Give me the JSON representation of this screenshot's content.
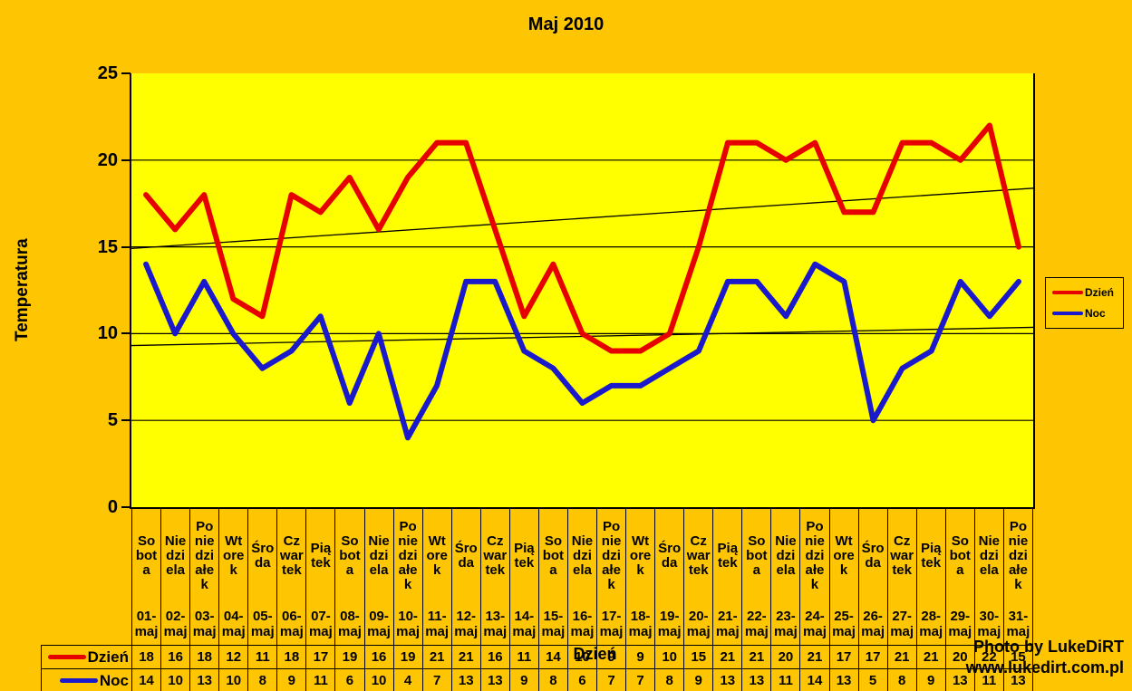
{
  "title": "Maj 2010",
  "axes": {
    "y_title": "Temperatura",
    "x_title": "Dzień",
    "y_ticks": [
      25,
      20,
      15,
      10,
      5,
      0
    ]
  },
  "legend": {
    "items": [
      {
        "label": "Dzień",
        "color": "#e60000"
      },
      {
        "label": "Noc",
        "color": "#1a1acc"
      }
    ]
  },
  "table": {
    "row_labels": [
      "Dzień",
      "Noc"
    ]
  },
  "watermark": {
    "line1": "Photo by LukeDiRT",
    "line2": "www.lukedirt.com.pl"
  },
  "colors": {
    "background": "#fec502",
    "plot_background": "#ffff00",
    "legend_background": "#ffcc00",
    "gridline": "#000000",
    "trendline": "#000000"
  },
  "weekday_wrap": {
    "Sobota": [
      "So",
      "bot",
      "a"
    ],
    "Niedziela": [
      "Nie",
      "dzi",
      "ela"
    ],
    "Poniedziałek": [
      "Po",
      "nie",
      "dzi",
      "ałe",
      "k"
    ],
    "Wtorek": [
      "Wt",
      "ore",
      "k"
    ],
    "Środa": [
      "Śro",
      "da"
    ],
    "Czwartek": [
      "Cz",
      "war",
      "tek"
    ],
    "Piątek": [
      "Pią",
      "tek"
    ]
  },
  "chart_data": {
    "type": "line",
    "title": "Maj 2010",
    "xlabel": "Dzień",
    "ylabel": "Temperatura",
    "ylim": [
      0,
      25
    ],
    "grid_values": [
      20,
      15,
      10,
      5
    ],
    "legend_position": "right",
    "categories_weekday": [
      "Sobota",
      "Niedziela",
      "Poniedziałek",
      "Wtorek",
      "Środa",
      "Czwartek",
      "Piątek",
      "Sobota",
      "Niedziela",
      "Poniedziałek",
      "Wtorek",
      "Środa",
      "Czwartek",
      "Piątek",
      "Sobota",
      "Niedziela",
      "Poniedziałek",
      "Wtorek",
      "Środa",
      "Czwartek",
      "Piątek",
      "Sobota",
      "Niedziela",
      "Poniedziałek",
      "Wtorek",
      "Środa",
      "Czwartek",
      "Piątek",
      "Sobota",
      "Niedziela",
      "Poniedziałek"
    ],
    "categories_date": [
      "01-maj",
      "02-maj",
      "03-maj",
      "04-maj",
      "05-maj",
      "06-maj",
      "07-maj",
      "08-maj",
      "09-maj",
      "10-maj",
      "11-maj",
      "12-maj",
      "13-maj",
      "14-maj",
      "15-maj",
      "16-maj",
      "17-maj",
      "18-maj",
      "19-maj",
      "20-maj",
      "21-maj",
      "22-maj",
      "23-maj",
      "24-maj",
      "25-maj",
      "26-maj",
      "27-maj",
      "28-maj",
      "29-maj",
      "30-maj",
      "31-maj"
    ],
    "series": [
      {
        "name": "Dzień",
        "color": "#e60000",
        "values": [
          18,
          16,
          18,
          12,
          11,
          18,
          17,
          19,
          16,
          19,
          21,
          21,
          16,
          11,
          14,
          10,
          9,
          9,
          10,
          15,
          21,
          21,
          20,
          21,
          17,
          17,
          21,
          21,
          20,
          22,
          15
        ]
      },
      {
        "name": "Noc",
        "color": "#1a1acc",
        "values": [
          14,
          10,
          13,
          10,
          8,
          9,
          11,
          6,
          10,
          4,
          7,
          13,
          13,
          9,
          8,
          6,
          7,
          7,
          8,
          9,
          13,
          13,
          11,
          14,
          13,
          5,
          8,
          9,
          13,
          11,
          13
        ]
      }
    ],
    "trendlines": [
      {
        "series": "Dzień",
        "type": "linear"
      },
      {
        "series": "Noc",
        "type": "linear"
      }
    ]
  }
}
